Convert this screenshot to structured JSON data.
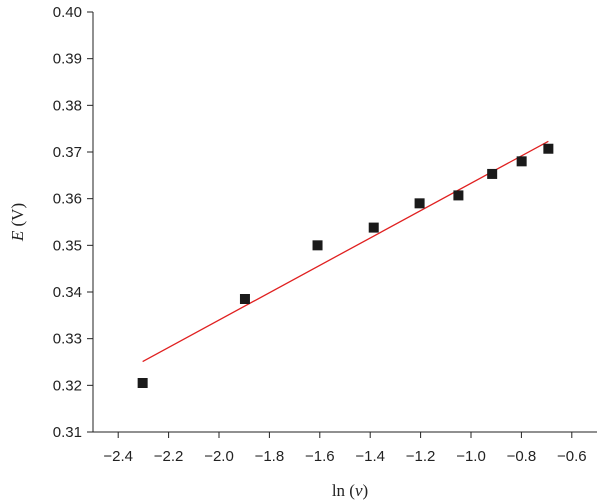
{
  "chart_data": {
    "type": "scatter",
    "xlabel": "ln (v)",
    "ylabel": "E (V)",
    "xlabel_parts": {
      "prefix": "ln (",
      "var": "v",
      "suffix": ")"
    },
    "ylabel_parts": {
      "var": "E",
      "suffix": " (V)"
    },
    "xlim": [
      -2.5,
      -0.5
    ],
    "ylim": [
      0.31,
      0.4
    ],
    "xticks": [
      -2.4,
      -2.2,
      -2.0,
      -1.8,
      -1.6,
      -1.4,
      -1.2,
      -1.0,
      -0.8,
      -0.6
    ],
    "xtick_labels": [
      "−2.4",
      "−2.2",
      "−2.0",
      "−1.8",
      "−1.6",
      "−1.4",
      "−1.2",
      "−1.0",
      "−0.8",
      "−0.6"
    ],
    "yticks": [
      0.31,
      0.32,
      0.33,
      0.34,
      0.35,
      0.36,
      0.37,
      0.38,
      0.39,
      0.4
    ],
    "ytick_labels": [
      "0.31",
      "0.32",
      "0.33",
      "0.34",
      "0.35",
      "0.36",
      "0.37",
      "0.38",
      "0.39",
      "0.40"
    ],
    "grid": false,
    "series": [
      {
        "marker": "square",
        "color": "#1a1a1a",
        "x": [
          -2.303,
          -1.897,
          -1.609,
          -1.386,
          -1.204,
          -1.05,
          -0.916,
          -0.799,
          -0.693
        ],
        "y": [
          0.3205,
          0.3385,
          0.35,
          0.3538,
          0.359,
          0.3607,
          0.3653,
          0.368,
          0.3707
        ]
      }
    ],
    "fit_line": {
      "color": "#e02020",
      "x": [
        -2.303,
        -0.693
      ],
      "y": [
        0.3251,
        0.3723
      ]
    }
  }
}
